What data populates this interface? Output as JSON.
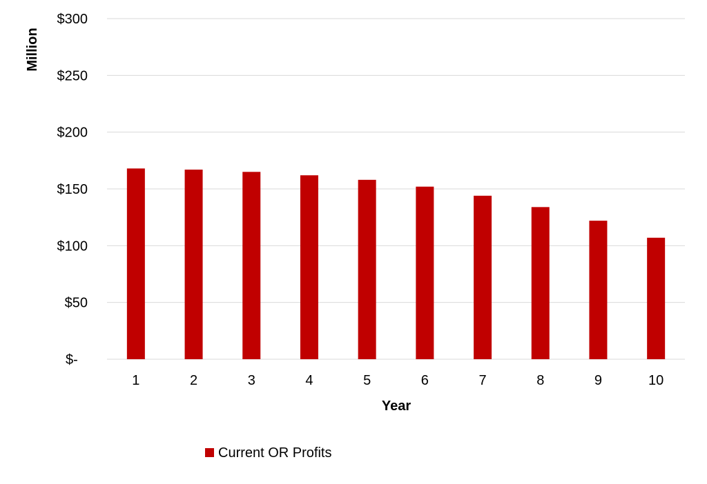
{
  "chart_data": {
    "type": "bar",
    "title": "",
    "xlabel": "Year",
    "ylabel": "Million",
    "categories": [
      "1",
      "2",
      "3",
      "4",
      "5",
      "6",
      "7",
      "8",
      "9",
      "10"
    ],
    "series": [
      {
        "name": "Current OR Profits",
        "values": [
          168,
          167,
          165,
          162,
          158,
          152,
          144,
          134,
          122,
          107
        ],
        "color": "#C00000"
      }
    ],
    "ylim": [
      0,
      300
    ],
    "yticks": [
      0,
      50,
      100,
      150,
      200,
      250,
      300
    ],
    "ytick_labels": [
      "$-",
      "$50",
      "$100",
      "$150",
      "$200",
      "$250",
      "$300"
    ],
    "grid": true,
    "grid_color": "#d9d9d9",
    "legend_position": "bottom"
  }
}
